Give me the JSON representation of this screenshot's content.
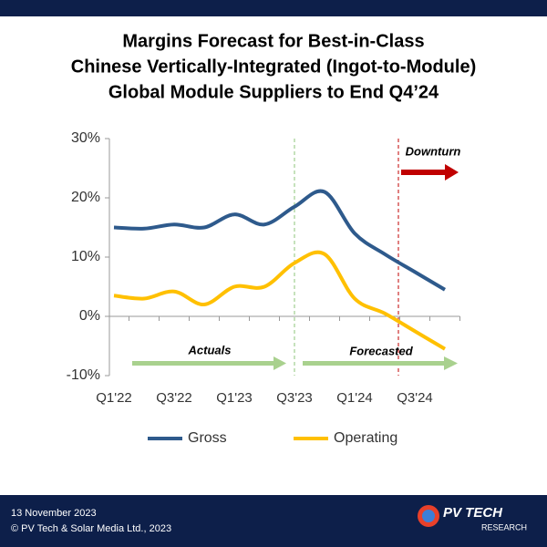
{
  "chart_data": {
    "type": "line",
    "title": [
      "Margins Forecast for Best-in-Class",
      "Chinese Vertically-Integrated (Ingot-to-Module)",
      "Global Module Suppliers to End Q4’24"
    ],
    "categories": [
      "Q1'22",
      null,
      "Q3'22",
      null,
      "Q1'23",
      null,
      "Q3'23",
      null,
      "Q1'24",
      null,
      "Q3'24",
      null
    ],
    "series": [
      {
        "name": "Gross",
        "color": "#2e5a8c",
        "values": [
          15,
          14.8,
          15.5,
          15,
          17.2,
          15.5,
          18.5,
          21,
          14,
          10.5,
          7.5,
          4.5
        ]
      },
      {
        "name": "Operating",
        "color": "#ffc000",
        "values": [
          3.5,
          3,
          4.2,
          2,
          5,
          5,
          9,
          10.5,
          3,
          0.5,
          -2.5,
          -5.5
        ]
      }
    ],
    "ylim": [
      -10,
      30
    ],
    "yticks": [
      {
        "value": -10,
        "label": "-10%"
      },
      {
        "value": 0,
        "label": "0%"
      },
      {
        "value": 10,
        "label": "10%"
      },
      {
        "value": 20,
        "label": "20%"
      },
      {
        "value": 30,
        "label": "30%"
      }
    ],
    "annotations": [
      "Actuals",
      "Forecasted",
      "Downturn"
    ],
    "legend": "bottom"
  },
  "footer": {
    "date": "13 November  2023",
    "copyright": "© PV Tech & Solar Media Ltd., 2023",
    "logo": "PV TECH",
    "logo_sub": "RESEARCH"
  }
}
